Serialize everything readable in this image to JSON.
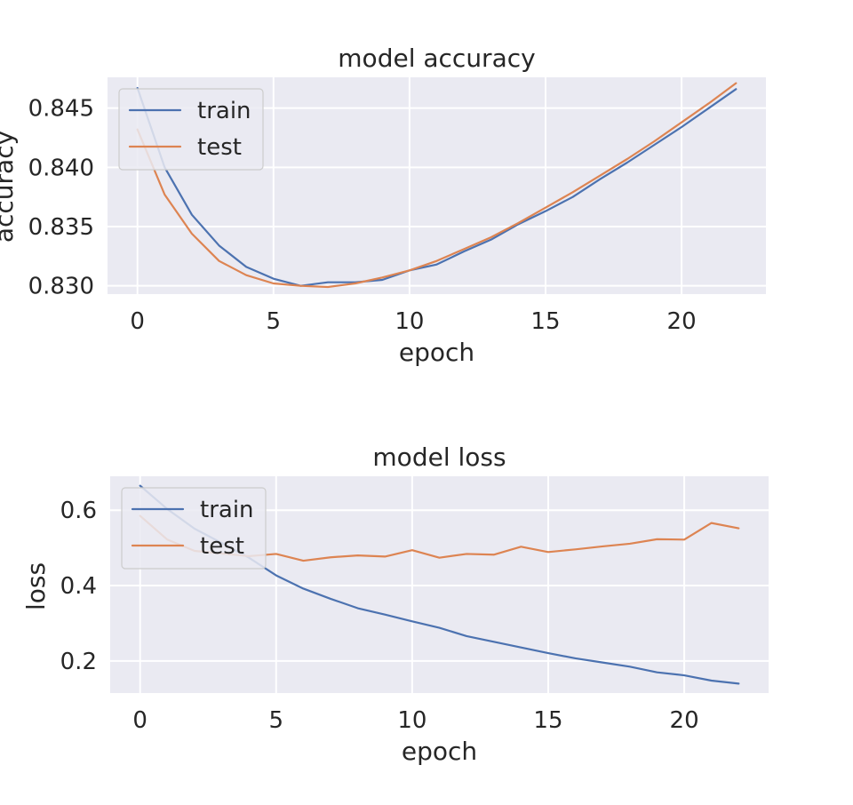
{
  "chart_data": [
    {
      "type": "line",
      "title": "model accuracy",
      "xlabel": "epoch",
      "ylabel": "accuracy",
      "xlim": [
        -1.1,
        23.1
      ],
      "ylim": [
        0.8293,
        0.8476
      ],
      "xticks": [
        0,
        5,
        10,
        15,
        20
      ],
      "yticks": [
        0.83,
        0.835,
        0.84,
        0.845
      ],
      "ytick_decimals": 3,
      "grid": true,
      "legend": "upper-left",
      "x": [
        0,
        1,
        2,
        3,
        4,
        5,
        6,
        7,
        8,
        9,
        10,
        11,
        12,
        13,
        14,
        15,
        16,
        17,
        18,
        19,
        20,
        21,
        22
      ],
      "series": [
        {
          "name": "train",
          "color": "#4c72b0",
          "values": [
            0.8467,
            0.84,
            0.836,
            0.8334,
            0.8316,
            0.8306,
            0.83,
            0.8303,
            0.8303,
            0.8305,
            0.8313,
            0.8318,
            0.8329,
            0.8339,
            0.8352,
            0.8363,
            0.8375,
            0.839,
            0.8404,
            0.8419,
            0.8434,
            0.845,
            0.8466
          ]
        },
        {
          "name": "test",
          "color": "#dd8452",
          "values": [
            0.8432,
            0.8377,
            0.8344,
            0.8321,
            0.8309,
            0.8302,
            0.83,
            0.8299,
            0.8302,
            0.8307,
            0.8313,
            0.8321,
            0.8331,
            0.8341,
            0.8353,
            0.8366,
            0.8379,
            0.8393,
            0.8407,
            0.8422,
            0.8438,
            0.8454,
            0.8471
          ]
        }
      ]
    },
    {
      "type": "line",
      "title": "model loss",
      "xlabel": "epoch",
      "ylabel": "loss",
      "xlim": [
        -1.1,
        23.1
      ],
      "ylim": [
        0.115,
        0.69
      ],
      "xticks": [
        0,
        5,
        10,
        15,
        20
      ],
      "yticks": [
        0.2,
        0.4,
        0.6
      ],
      "ytick_decimals": 1,
      "grid": true,
      "legend": "upper-left",
      "x": [
        0,
        1,
        2,
        3,
        4,
        5,
        6,
        7,
        8,
        9,
        10,
        11,
        12,
        13,
        14,
        15,
        16,
        17,
        18,
        19,
        20,
        21,
        22
      ],
      "series": [
        {
          "name": "train",
          "color": "#4c72b0",
          "values": [
            0.665,
            0.603,
            0.551,
            0.513,
            0.474,
            0.427,
            0.392,
            0.365,
            0.34,
            0.323,
            0.305,
            0.288,
            0.266,
            0.251,
            0.236,
            0.221,
            0.207,
            0.196,
            0.185,
            0.17,
            0.162,
            0.148,
            0.14
          ]
        },
        {
          "name": "test",
          "color": "#dd8452",
          "values": [
            0.585,
            0.522,
            0.492,
            0.485,
            0.478,
            0.484,
            0.466,
            0.475,
            0.48,
            0.477,
            0.494,
            0.474,
            0.484,
            0.482,
            0.503,
            0.489,
            0.496,
            0.504,
            0.511,
            0.523,
            0.522,
            0.566,
            0.552
          ]
        }
      ]
    }
  ]
}
